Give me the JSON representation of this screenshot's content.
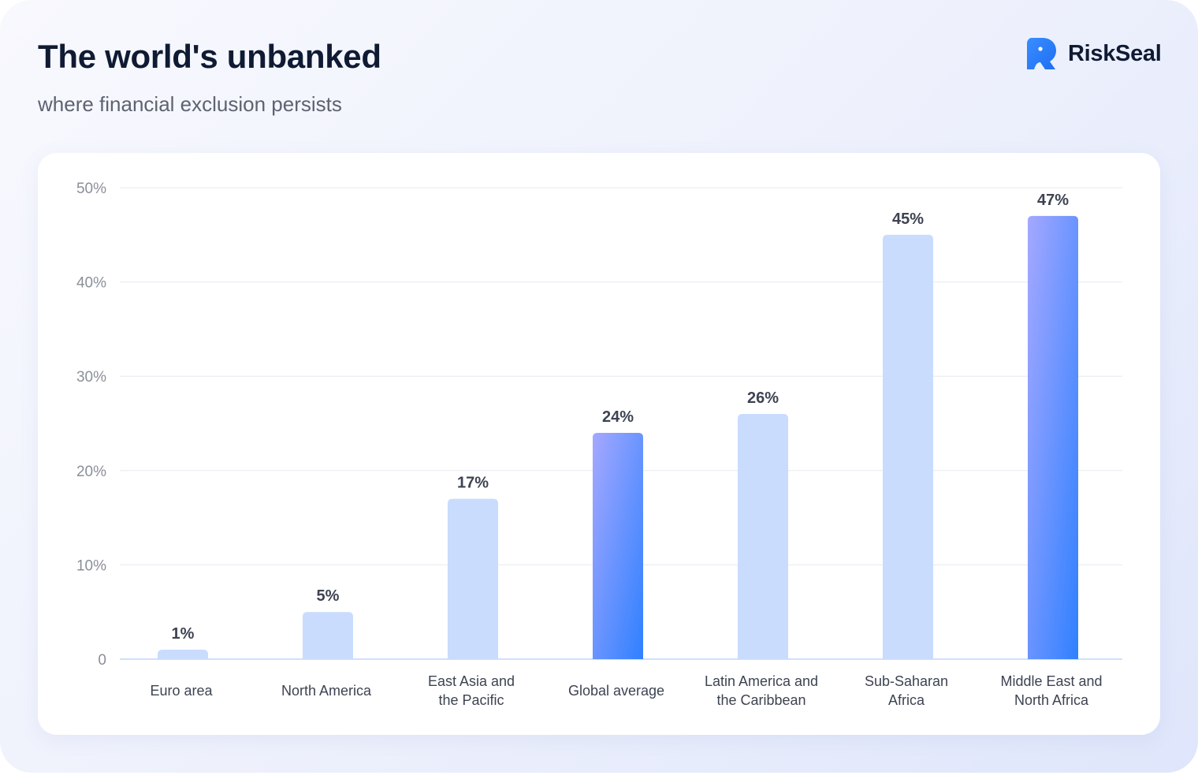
{
  "header": {
    "title": "The world's unbanked",
    "subtitle": "where financial exclusion persists"
  },
  "brand": {
    "name": "RiskSeal",
    "logo_icon": "riskseal-logo-icon",
    "color": "#2f80ff"
  },
  "colors": {
    "bar_default": "#c9dcfd",
    "bar_highlight_top": "#a5a8ff",
    "bar_highlight_bottom": "#2f80ff",
    "grid": "#edf0f5",
    "axis": "#cfe0fb"
  },
  "chart_data": {
    "type": "bar",
    "title": "The world's unbanked",
    "subtitle": "where financial exclusion persists",
    "xlabel": "",
    "ylabel": "",
    "ylim": [
      0,
      50
    ],
    "yticks": [
      0,
      10,
      20,
      30,
      40,
      50
    ],
    "ytick_labels": [
      "0",
      "10%",
      "20%",
      "30%",
      "40%",
      "50%"
    ],
    "grid": true,
    "categories": [
      [
        "Euro area"
      ],
      [
        "North America"
      ],
      [
        "East Asia and",
        "the Pacific"
      ],
      [
        "Global average"
      ],
      [
        "Latin America and",
        "the Caribbean"
      ],
      [
        "Sub-Saharan",
        "Africa"
      ],
      [
        "Middle East and",
        "North Africa"
      ]
    ],
    "values": [
      1,
      5,
      17,
      24,
      26,
      45,
      47
    ],
    "value_labels": [
      "1%",
      "5%",
      "17%",
      "24%",
      "26%",
      "45%",
      "47%"
    ],
    "highlighted": [
      false,
      false,
      false,
      true,
      false,
      false,
      true
    ]
  }
}
